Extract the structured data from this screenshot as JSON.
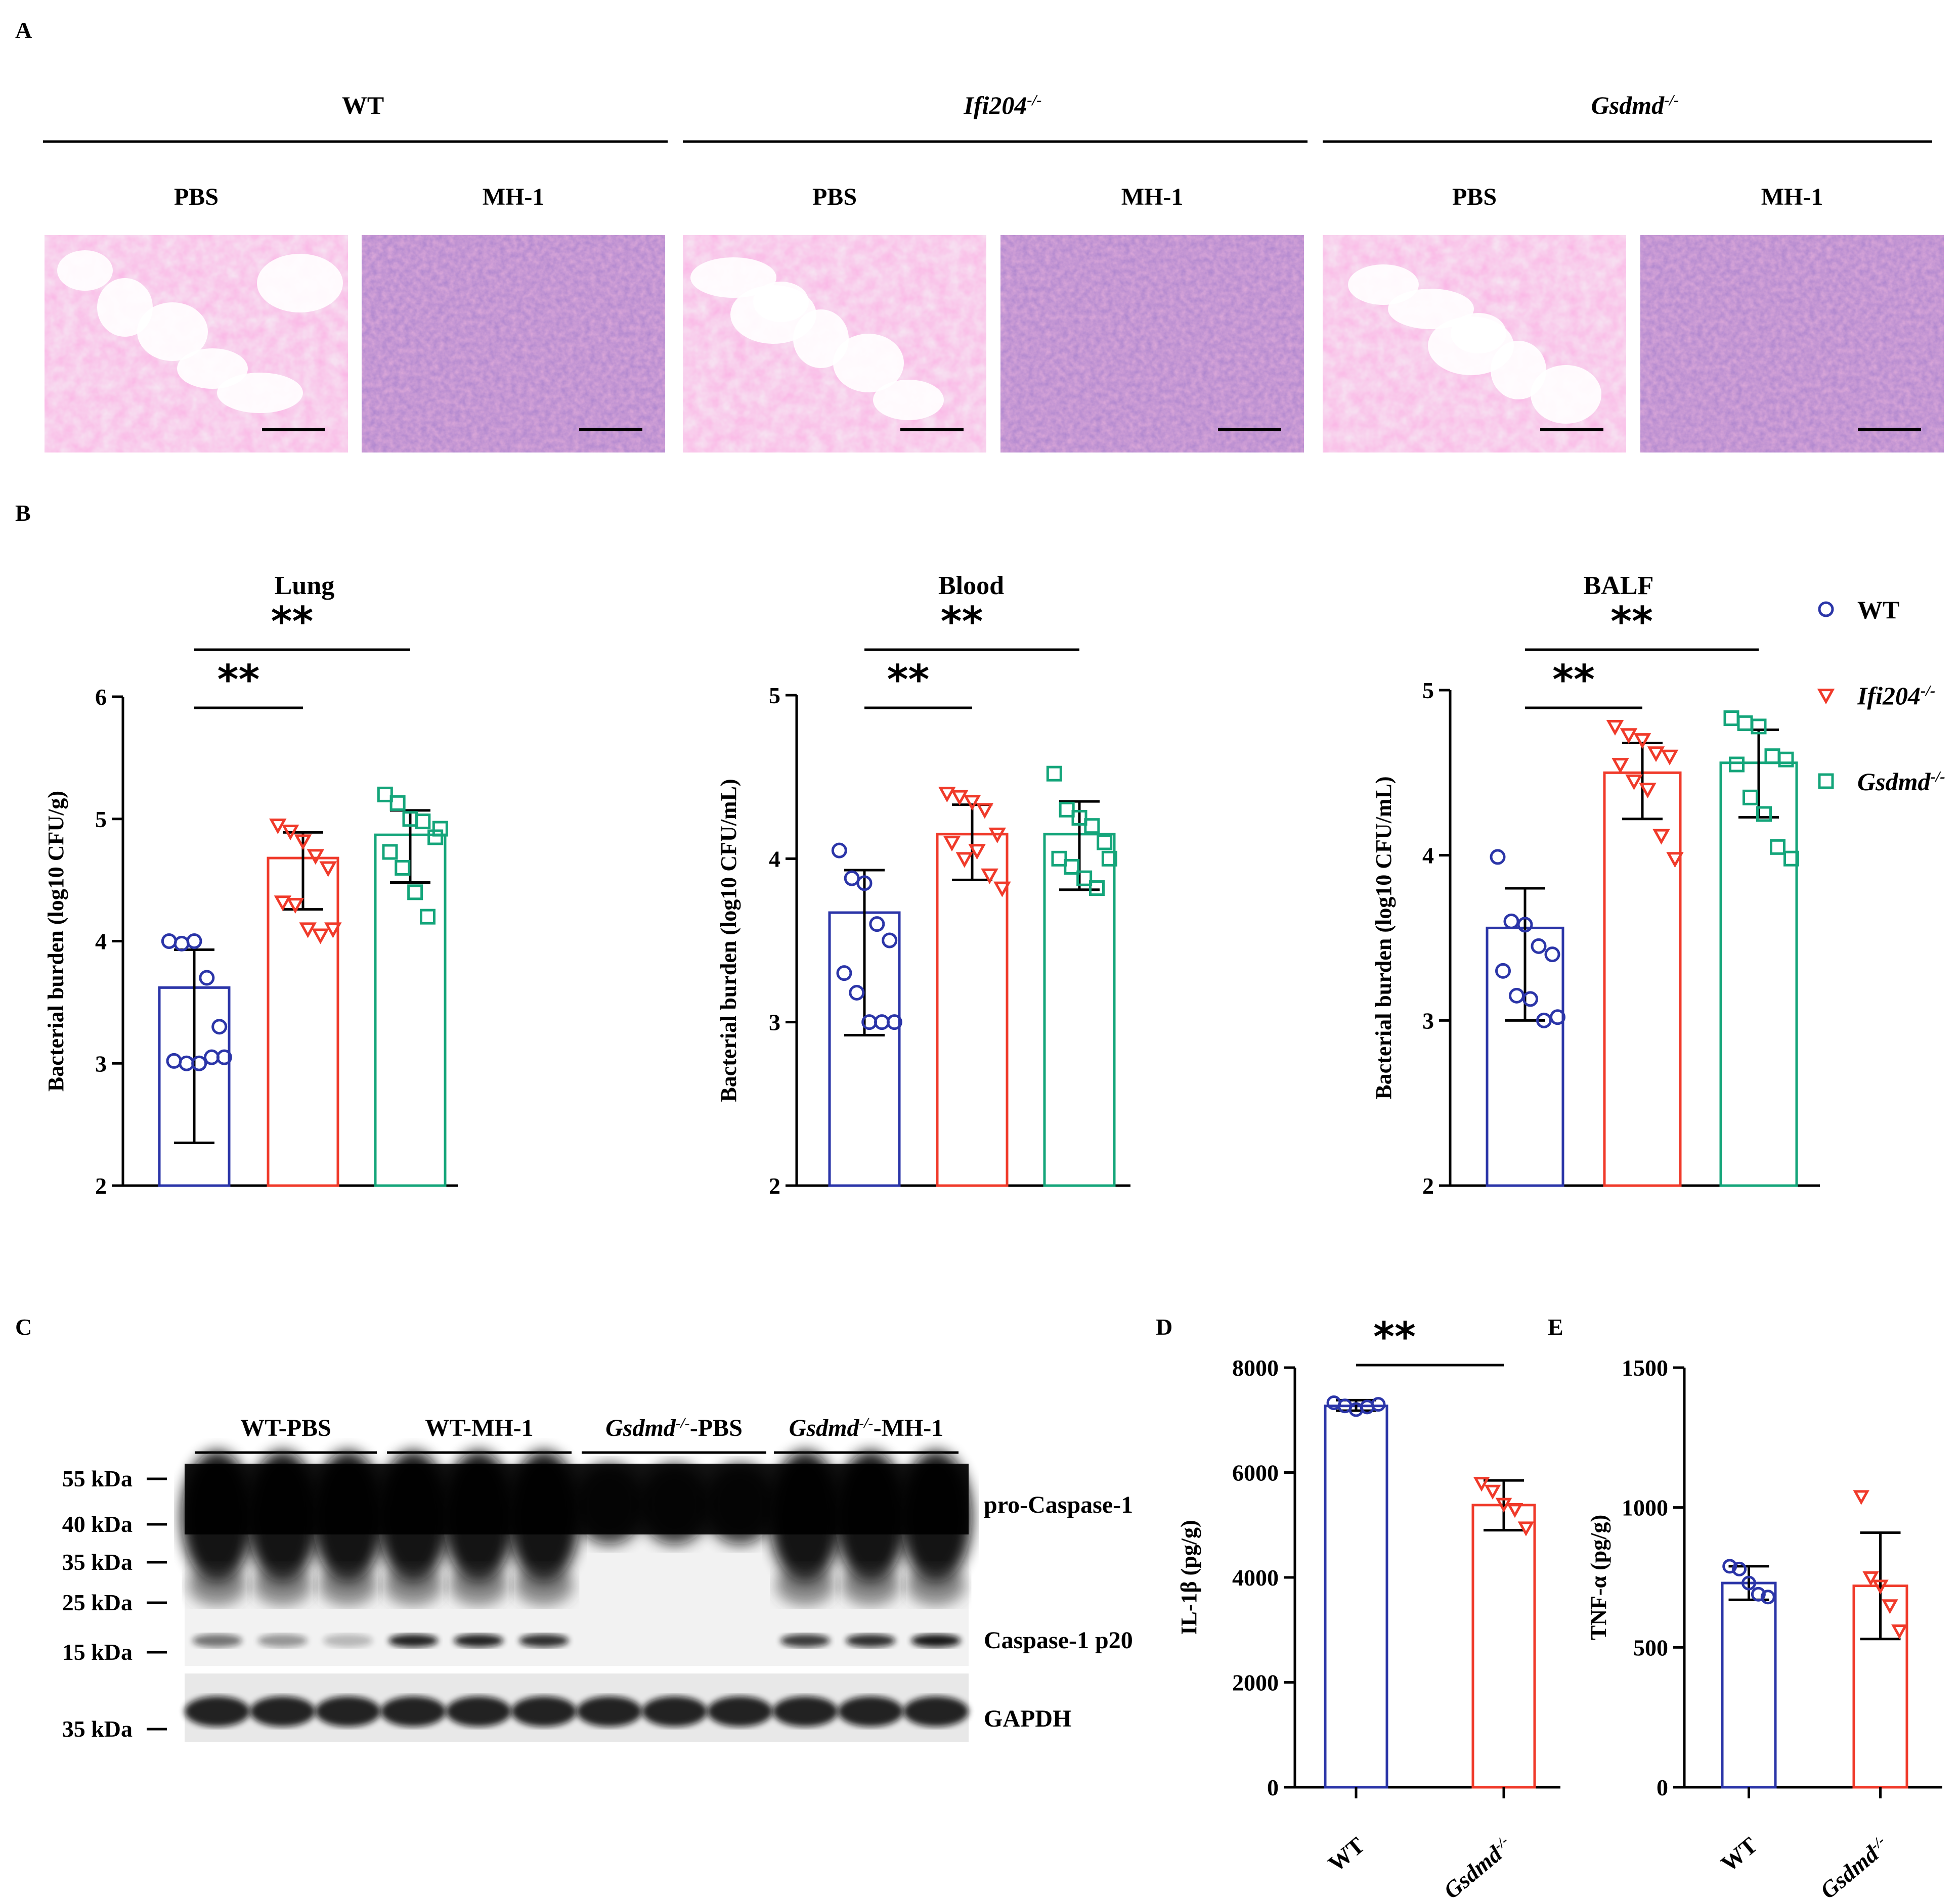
{
  "panel_letters": {
    "a": "A",
    "b": "B",
    "c": "C",
    "d": "D",
    "e": "E"
  },
  "colors": {
    "wt": "#2b35a8",
    "ifi204": "#f03a2a",
    "gsdmd": "#14a57a"
  },
  "panelA": {
    "genotypes": [
      {
        "base": "WT",
        "sup": "",
        "italic": false
      },
      {
        "base": "Ifi204",
        "sup": "-/-",
        "italic": true
      },
      {
        "base": "Gsdmd",
        "sup": "-/-",
        "italic": true
      }
    ],
    "conditions": [
      "PBS",
      "MH-1",
      "PBS",
      "MH-1",
      "PBS",
      "MH-1"
    ]
  },
  "legend": [
    {
      "key": "wt",
      "base": "WT",
      "sup": "",
      "italic": false,
      "marker": "circle"
    },
    {
      "key": "ifi204",
      "base": "Ifi204",
      "sup": "-/-",
      "italic": true,
      "marker": "triangle"
    },
    {
      "key": "gsdmd",
      "base": "Gsdmd",
      "sup": "-/-",
      "italic": true,
      "marker": "square"
    }
  ],
  "chart_data": [
    {
      "id": "lung",
      "type": "bar",
      "title": "Lung",
      "ylabel": "Bacterial burden (log10 CFU/g)",
      "ylim": [
        2,
        6
      ],
      "yticks": [
        2,
        3,
        4,
        5,
        6
      ],
      "sig": [
        {
          "from": 0,
          "to": 1,
          "label": "**"
        },
        {
          "from": 0,
          "to": 2,
          "label": "**"
        }
      ],
      "series": [
        {
          "key": "wt",
          "mean": 3.62,
          "sd_low": 2.35,
          "sd_high": 3.93,
          "points": [
            4.0,
            3.98,
            4.0,
            3.7,
            3.3,
            3.02,
            3.0,
            3.0,
            3.05,
            3.05
          ]
        },
        {
          "key": "ifi204",
          "mean": 4.68,
          "sd_low": 4.26,
          "sd_high": 4.89,
          "points": [
            4.95,
            4.9,
            4.82,
            4.7,
            4.6,
            4.32,
            4.3,
            4.1,
            4.05,
            4.1
          ]
        },
        {
          "key": "gsdmd",
          "mean": 4.87,
          "sd_low": 4.48,
          "sd_high": 5.07,
          "points": [
            5.2,
            5.13,
            5.0,
            4.98,
            4.85,
            4.73,
            4.6,
            4.4,
            4.2,
            4.92
          ]
        }
      ]
    },
    {
      "id": "blood",
      "type": "bar",
      "title": "Blood",
      "ylabel": "Bacterial burden (log10 CFU/mL)",
      "ylim": [
        2,
        5
      ],
      "yticks": [
        2,
        3,
        4,
        5
      ],
      "sig": [
        {
          "from": 0,
          "to": 1,
          "label": "**"
        },
        {
          "from": 0,
          "to": 2,
          "label": "**"
        }
      ],
      "series": [
        {
          "key": "wt",
          "mean": 3.67,
          "sd_low": 2.92,
          "sd_high": 3.93,
          "points": [
            4.05,
            3.88,
            3.85,
            3.6,
            3.5,
            3.3,
            3.18,
            3.0,
            3.0,
            3.0
          ]
        },
        {
          "key": "ifi204",
          "mean": 4.15,
          "sd_low": 3.87,
          "sd_high": 4.33,
          "points": [
            4.4,
            4.38,
            4.35,
            4.3,
            4.15,
            4.1,
            4.0,
            4.05,
            3.9,
            3.82
          ]
        },
        {
          "key": "gsdmd",
          "mean": 4.15,
          "sd_low": 3.81,
          "sd_high": 4.35,
          "points": [
            4.52,
            4.3,
            4.25,
            4.2,
            4.1,
            4.0,
            3.95,
            3.88,
            3.82,
            4.0
          ]
        }
      ]
    },
    {
      "id": "balf",
      "type": "bar",
      "title": "BALF",
      "ylabel": "Bacterial burden (log10 CFU/mL)",
      "ylim": [
        2,
        5
      ],
      "yticks": [
        2,
        3,
        4,
        5
      ],
      "sig": [
        {
          "from": 0,
          "to": 1,
          "label": "**"
        },
        {
          "from": 0,
          "to": 2,
          "label": "**"
        }
      ],
      "series": [
        {
          "key": "wt",
          "mean": 3.56,
          "sd_low": 3.0,
          "sd_high": 3.8,
          "points": [
            3.99,
            3.6,
            3.58,
            3.45,
            3.4,
            3.3,
            3.15,
            3.13,
            3.0,
            3.02
          ]
        },
        {
          "key": "ifi204",
          "mean": 4.5,
          "sd_low": 4.22,
          "sd_high": 4.68,
          "points": [
            4.78,
            4.73,
            4.7,
            4.62,
            4.6,
            4.55,
            4.45,
            4.4,
            4.12,
            3.98
          ]
        },
        {
          "key": "gsdmd",
          "mean": 4.56,
          "sd_low": 4.23,
          "sd_high": 4.76,
          "points": [
            4.83,
            4.8,
            4.78,
            4.6,
            4.58,
            4.55,
            4.35,
            4.25,
            4.05,
            3.98
          ]
        }
      ]
    },
    {
      "id": "il1b",
      "type": "bar",
      "title": "",
      "ylabel": "IL-1β (pg/g)",
      "ylim": [
        0,
        8000
      ],
      "yticks": [
        0,
        2000,
        4000,
        6000,
        8000
      ],
      "categories": [
        {
          "base": "WT",
          "sup": "",
          "italic": false
        },
        {
          "base": "Gsdmd",
          "sup": "-/-",
          "italic": true
        }
      ],
      "sig": [
        {
          "from": 0,
          "to": 1,
          "label": "**"
        }
      ],
      "series": [
        {
          "key": "wt",
          "mean": 7270,
          "sd_low": 7180,
          "sd_high": 7380,
          "points": [
            7330,
            7270,
            7200,
            7250,
            7300
          ]
        },
        {
          "key": "ifi204",
          "mean": 5380,
          "sd_low": 4900,
          "sd_high": 5850,
          "points": [
            5800,
            5650,
            5400,
            5300,
            4950
          ]
        }
      ]
    },
    {
      "id": "tnfa",
      "type": "bar",
      "title": "",
      "ylabel": "TNF-α (pg/g)",
      "ylim": [
        0,
        1500
      ],
      "yticks": [
        0,
        500,
        1000,
        1500
      ],
      "categories": [
        {
          "base": "WT",
          "sup": "",
          "italic": false
        },
        {
          "base": "Gsdmd",
          "sup": "-/-",
          "italic": true
        }
      ],
      "sig": [],
      "series": [
        {
          "key": "wt",
          "mean": 730,
          "sd_low": 670,
          "sd_high": 790,
          "points": [
            790,
            780,
            730,
            690,
            680
          ]
        },
        {
          "key": "ifi204",
          "mean": 720,
          "sd_low": 530,
          "sd_high": 910,
          "points": [
            1040,
            750,
            720,
            650,
            560
          ]
        }
      ]
    }
  ],
  "blot": {
    "groups": [
      {
        "base": "WT-PBS",
        "sup": "",
        "tail": "",
        "italic": false
      },
      {
        "base": "WT-MH-1",
        "sup": "",
        "tail": "",
        "italic": false
      },
      {
        "base": "Gsdmd",
        "sup": "-/-",
        "tail": "-PBS",
        "italic": true
      },
      {
        "base": "Gsdmd",
        "sup": "-/-",
        "tail": "-MH-1",
        "italic": true
      }
    ],
    "markers": [
      "55 kDa",
      "40 kDa",
      "35 kDa",
      "25 kDa",
      "15 kDa",
      "35 kDa"
    ],
    "bands": [
      "pro-Caspase-1",
      "Caspase-1 p20",
      "GAPDH"
    ],
    "p20_intensity": [
      0.55,
      0.4,
      0.25,
      0.9,
      0.9,
      0.85,
      0.0,
      0.0,
      0.0,
      0.8,
      0.85,
      0.95
    ]
  }
}
